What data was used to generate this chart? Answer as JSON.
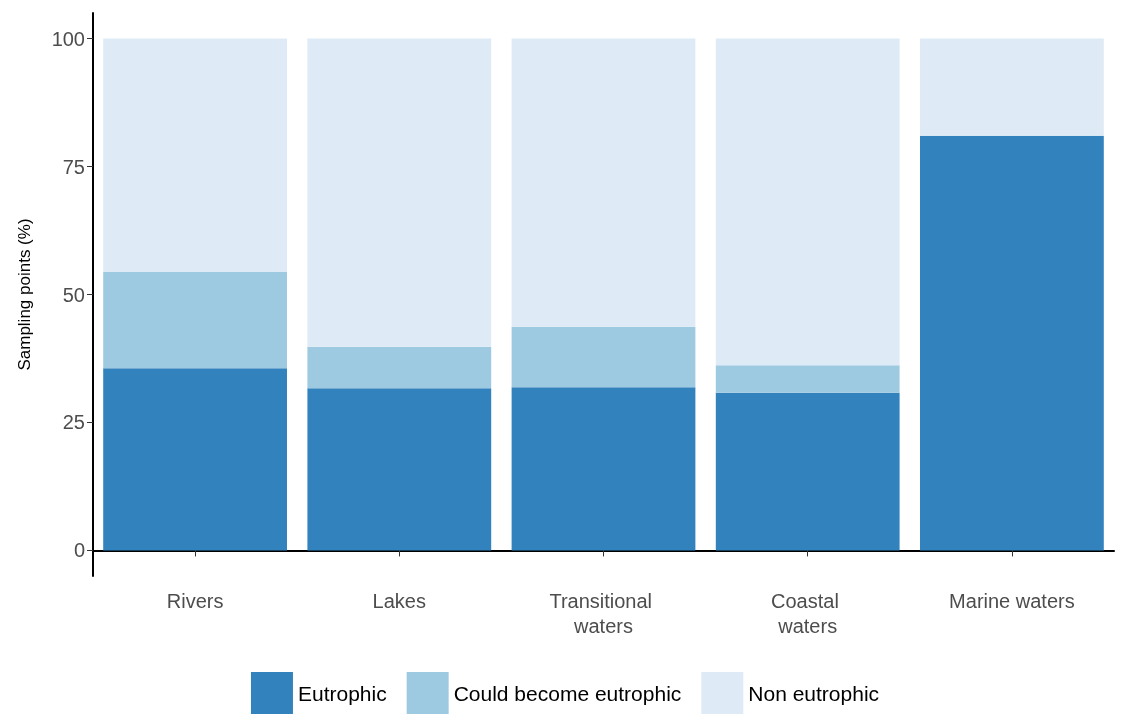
{
  "chart_data": {
    "type": "bar",
    "stacked": true,
    "ylabel": "Sampling points (%)",
    "categories": [
      "Rivers",
      "Lakes",
      "Transitional waters",
      "Coastal waters",
      "Marine waters"
    ],
    "series": [
      {
        "name": "Eutrophic",
        "color": "#3182bd",
        "values": [
          35.6,
          31.7,
          31.9,
          30.8,
          81.0
        ]
      },
      {
        "name": "Could become eutrophic",
        "color": "#9ecae1",
        "values": [
          18.8,
          8.1,
          11.8,
          5.4,
          0
        ]
      },
      {
        "name": "Non eutrophic",
        "color": "#deebf7",
        "values": [
          45.6,
          60.2,
          56.3,
          63.8,
          19.0
        ]
      }
    ],
    "ylim": [
      -5,
      105
    ],
    "yticks": [
      0,
      25,
      50,
      75,
      100
    ],
    "grid": false,
    "legend": "bottom"
  }
}
